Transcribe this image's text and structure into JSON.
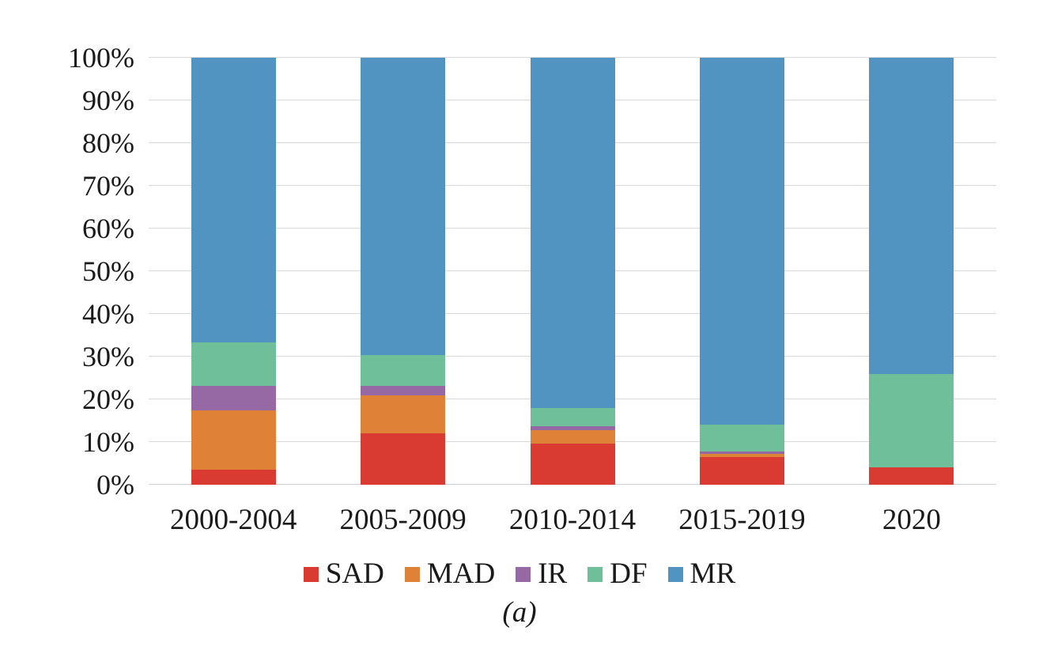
{
  "figure": {
    "caption": "(a)"
  },
  "chart_data": {
    "type": "bar",
    "subtype": "stacked-100-percent-column",
    "title": "",
    "xlabel": "",
    "ylabel": "",
    "categories": [
      "2000-2004",
      "2005-2009",
      "2010-2014",
      "2015-2019",
      "2020"
    ],
    "series": [
      {
        "name": "SAD",
        "color": "#D93B32",
        "values": [
          3.5,
          12.0,
          9.6,
          6.5,
          4.1
        ]
      },
      {
        "name": "MAD",
        "color": "#E08138",
        "values": [
          13.9,
          8.9,
          3.2,
          0.7,
          0.0
        ]
      },
      {
        "name": "IR",
        "color": "#9669A5",
        "values": [
          5.7,
          2.2,
          0.9,
          0.6,
          0.0
        ]
      },
      {
        "name": "DF",
        "color": "#6FBF9B",
        "values": [
          10.2,
          7.3,
          4.3,
          6.3,
          21.8
        ]
      },
      {
        "name": "MR",
        "color": "#5193C1",
        "values": [
          66.7,
          69.6,
          82.0,
          85.9,
          74.1
        ]
      }
    ],
    "y_axis": {
      "min": 0,
      "max": 100,
      "tick_step": 10,
      "ticks": [
        "0%",
        "10%",
        "20%",
        "30%",
        "40%",
        "50%",
        "60%",
        "70%",
        "80%",
        "90%",
        "100%"
      ],
      "grid": true,
      "gridline_color": "#D9D9D9"
    },
    "legend": {
      "position": "bottom",
      "entries": [
        "SAD",
        "MAD",
        "IR",
        "DF",
        "MR"
      ]
    },
    "colors": {
      "background": "#FFFFFF",
      "text": "#1A1A1A"
    }
  }
}
